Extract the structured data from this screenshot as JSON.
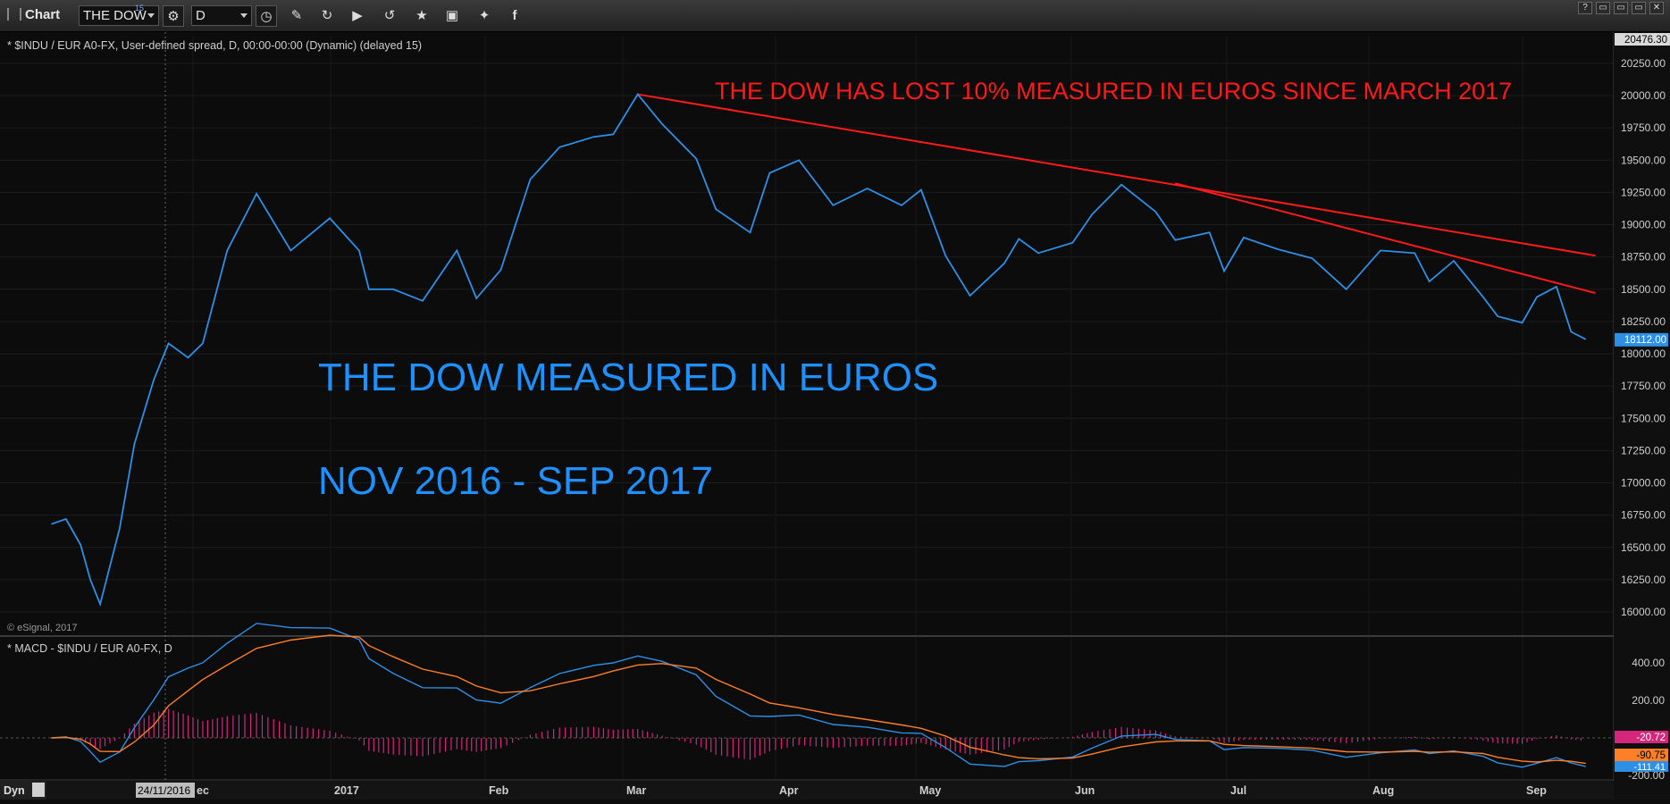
{
  "toolbar": {
    "app_label": "Chart",
    "symbol_value": "THE DOW",
    "symbol_badge": "15",
    "interval_value": "D",
    "icons": [
      "link-icon",
      "interval-clock-icon",
      "draw-pencil-icon",
      "replay-icon",
      "play-icon",
      "refresh-icon",
      "tag-icon",
      "comment-icon",
      "twitter-icon",
      "facebook-icon"
    ]
  },
  "window_controls": [
    "?",
    "▭",
    "▭",
    "▭",
    "✕"
  ],
  "price_pane": {
    "header": "* $INDU / EUR A0-FX, User-defined spread, D, 00:00-00:00 (Dynamic) (delayed 15)",
    "watermark": "© eSignal, 2017",
    "top_price_label": "20476.30",
    "last_price_label": "18112.00",
    "price_ticks": [
      "20250.00",
      "20000.00",
      "19750.00",
      "19500.00",
      "19250.00",
      "19000.00",
      "18750.00",
      "18500.00",
      "18250.00",
      "18000.00",
      "17750.00",
      "17500.00",
      "17250.00",
      "17000.00",
      "16750.00",
      "16500.00",
      "16250.00",
      "16000.00"
    ],
    "annotation_red": "THE DOW HAS LOST 10% MEASURED IN EUROS SINCE MARCH 2017",
    "annotation_blue_1": "THE DOW MEASURED IN EUROS",
    "annotation_blue_2": "NOV 2016 -  SEP 2017",
    "colors": {
      "price_line": "#2d8fe6",
      "trend_line": "#ff1a1a",
      "annotation_blue": "#1e90ff",
      "background": "#0c0c0c"
    }
  },
  "macd_pane": {
    "header": "* MACD - $INDU / EUR A0-FX, D",
    "ticks": [
      "400.00",
      "200.00",
      "-200.00"
    ],
    "labels": {
      "macd": "-20.72",
      "signal": "-90.75",
      "hist": "-111.41"
    },
    "colors": {
      "macd": "#2d8fe6",
      "signal": "#ff7f27",
      "hist": "#d4267a"
    }
  },
  "time_axis": {
    "left_button": "Dyn",
    "cursor_date": "24/11/2016",
    "labels": [
      "ec",
      "2017",
      "Feb",
      "Mar",
      "Apr",
      "May",
      "Jun",
      "Jul",
      "Aug",
      "Sep"
    ]
  },
  "chart_data": {
    "type": "line",
    "title": "",
    "series": [
      {
        "name": "$INDU / EUR A0-FX",
        "x": [
          "2016-11-01",
          "2016-11-04",
          "2016-11-07",
          "2016-11-09",
          "2016-11-11",
          "2016-11-15",
          "2016-11-18",
          "2016-11-22",
          "2016-11-25",
          "2016-11-29",
          "2016-12-02",
          "2016-12-07",
          "2016-12-13",
          "2016-12-20",
          "2016-12-28",
          "2017-01-03",
          "2017-01-05",
          "2017-01-10",
          "2017-01-16",
          "2017-01-23",
          "2017-01-27",
          "2017-02-01",
          "2017-02-07",
          "2017-02-13",
          "2017-02-20",
          "2017-02-24",
          "2017-03-01",
          "2017-03-06",
          "2017-03-13",
          "2017-03-17",
          "2017-03-24",
          "2017-03-28",
          "2017-04-03",
          "2017-04-10",
          "2017-04-17",
          "2017-04-24",
          "2017-04-28",
          "2017-05-03",
          "2017-05-08",
          "2017-05-15",
          "2017-05-18",
          "2017-05-22",
          "2017-05-29",
          "2017-06-02",
          "2017-06-08",
          "2017-06-15",
          "2017-06-19",
          "2017-06-26",
          "2017-06-29",
          "2017-07-03",
          "2017-07-10",
          "2017-07-17",
          "2017-07-24",
          "2017-07-31",
          "2017-08-07",
          "2017-08-10",
          "2017-08-15",
          "2017-08-21",
          "2017-08-24",
          "2017-08-29",
          "2017-09-01",
          "2017-09-05",
          "2017-09-08",
          "2017-09-11"
        ],
        "y": [
          16680,
          16720,
          16520,
          16250,
          16060,
          16650,
          17300,
          17800,
          18080,
          17970,
          18080,
          18800,
          19240,
          18800,
          19050,
          18800,
          18500,
          18500,
          18410,
          18800,
          18430,
          18650,
          19350,
          19600,
          19680,
          19700,
          20010,
          19780,
          19510,
          19120,
          18940,
          19400,
          19500,
          19150,
          19280,
          19150,
          19270,
          18760,
          18450,
          18700,
          18890,
          18780,
          18860,
          19080,
          19310,
          19100,
          18880,
          18940,
          18640,
          18900,
          18810,
          18740,
          18500,
          18800,
          18780,
          18560,
          18720,
          18440,
          18290,
          18240,
          18440,
          18520,
          18170,
          18112
        ]
      }
    ],
    "trendlines": [
      {
        "name": "",
        "from": {
          "x": "2017-03-01",
          "y": 20010
        },
        "to": {
          "x": "2017-09-13",
          "y": 18760
        }
      },
      {
        "name": "",
        "from": {
          "x": "2017-06-19",
          "y": 19320
        },
        "to": {
          "x": "2017-09-13",
          "y": 18470
        }
      }
    ],
    "xlabel": "",
    "ylabel": "",
    "ylim": [
      15880,
      20476.3
    ],
    "grid": true,
    "legend": "none"
  }
}
